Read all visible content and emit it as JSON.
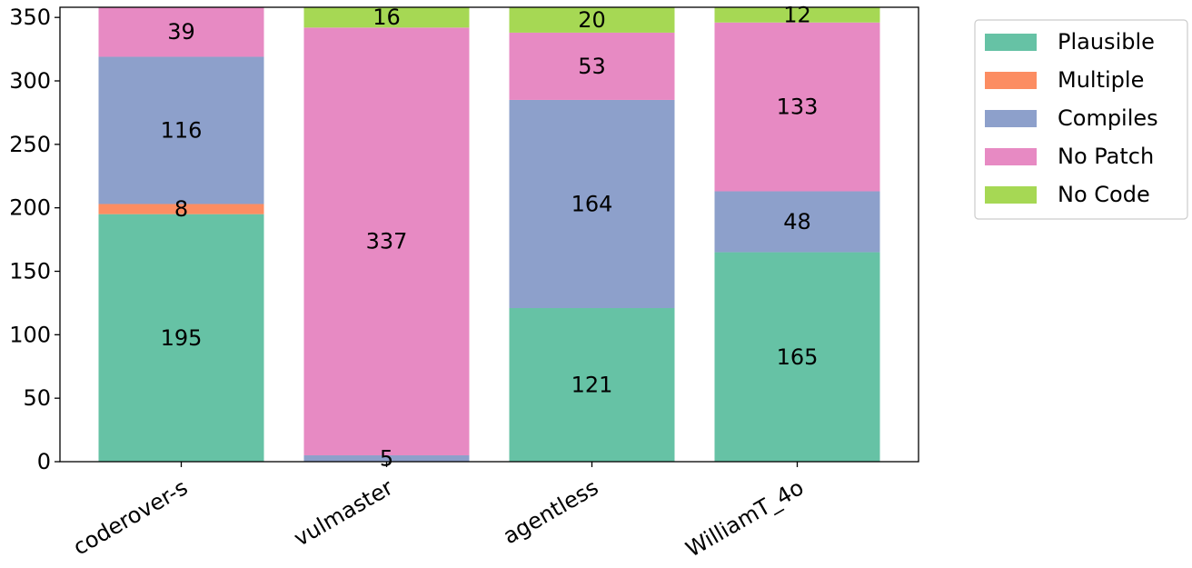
{
  "chart_data": {
    "type": "bar",
    "stacked": true,
    "title": "",
    "xlabel": "",
    "ylabel": "",
    "categories": [
      "coderover-s",
      "vulmaster",
      "agentless",
      "WilliamT_4o"
    ],
    "ylim": [
      0,
      358
    ],
    "yticks": [
      0,
      50,
      100,
      150,
      200,
      250,
      300,
      350
    ],
    "grid": false,
    "legend_position": "outside-top-right",
    "series": [
      {
        "name": "Plausible",
        "color": "#66c2a5",
        "values": [
          195,
          0,
          121,
          165
        ]
      },
      {
        "name": "Multiple",
        "color": "#fc8d62",
        "values": [
          8,
          0,
          0,
          0
        ]
      },
      {
        "name": "Compiles",
        "color": "#8da0cb",
        "values": [
          116,
          5,
          164,
          48
        ]
      },
      {
        "name": "No Patch",
        "color": "#e78ac3",
        "values": [
          39,
          337,
          53,
          133
        ]
      },
      {
        "name": "No Code",
        "color": "#a6d854",
        "values": [
          0,
          16,
          20,
          12
        ]
      }
    ]
  }
}
